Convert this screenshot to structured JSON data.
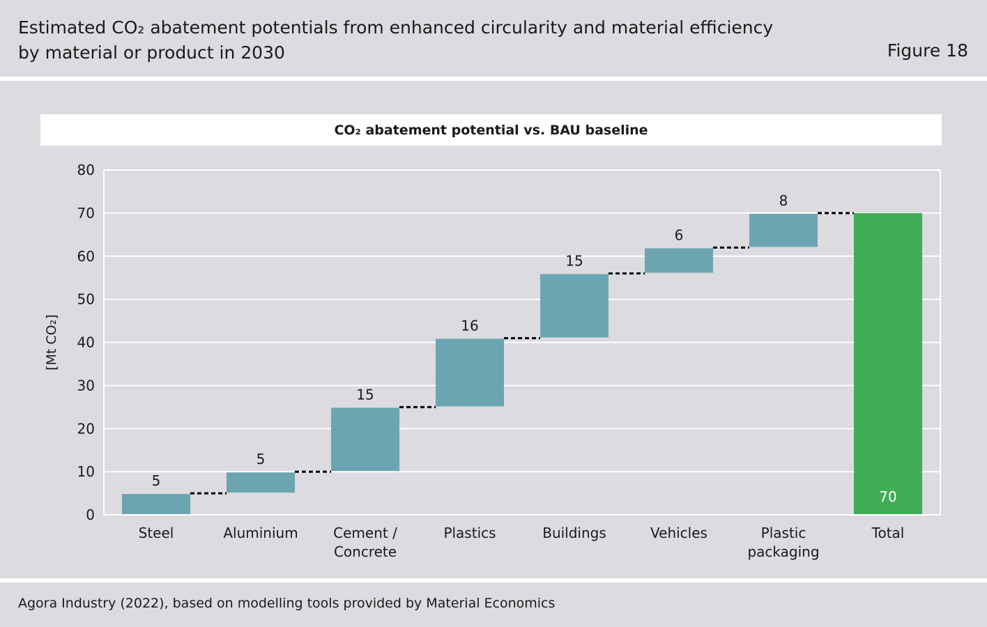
{
  "header": {
    "title_line1": "Estimated CO₂ abatement potentials from enhanced circularity and material efficiency",
    "title_line2": "by material or product in 2030",
    "figure_label": "Figure 18"
  },
  "footer": {
    "source": "Agora Industry (2022), based on modelling tools provided by Material Economics"
  },
  "colors": {
    "step": "#6ca5b1",
    "total": "#40ad55",
    "grid": "#ffffff",
    "connector": "#000000"
  },
  "chart_data": {
    "type": "waterfall",
    "title": "CO₂ abatement potential vs. BAU baseline",
    "ylabel": "[Mt CO₂]",
    "ylim": [
      0,
      80
    ],
    "yticks": [
      0,
      10,
      20,
      30,
      40,
      50,
      60,
      70,
      80
    ],
    "grid": true,
    "categories": [
      [
        "Steel"
      ],
      [
        "Aluminium"
      ],
      [
        "Cement /",
        "Concrete"
      ],
      [
        "Plastics"
      ],
      [
        "Buildings"
      ],
      [
        "Vehicles"
      ],
      [
        "Plastic",
        "packaging"
      ],
      [
        "Total"
      ]
    ],
    "values": [
      5,
      5,
      15,
      16,
      15,
      6,
      8,
      70
    ],
    "is_total": [
      false,
      false,
      false,
      false,
      false,
      false,
      false,
      true
    ],
    "data_labels": [
      "5",
      "5",
      "15",
      "16",
      "15",
      "6",
      "8",
      "70"
    ]
  }
}
